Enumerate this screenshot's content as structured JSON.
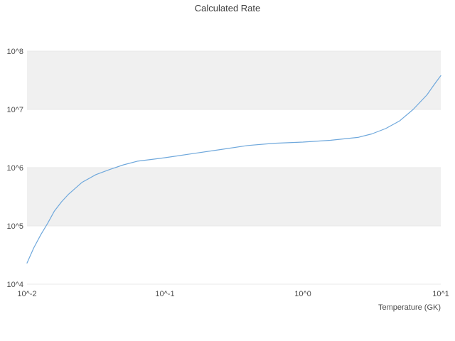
{
  "chart_data": {
    "type": "line",
    "title": "Calculated Rate",
    "xlabel": "Temperature (GK)",
    "ylabel": "",
    "x_scale": "log",
    "y_scale": "log",
    "xlim": [
      0.01,
      10
    ],
    "ylim": [
      10000.0,
      100000000.0
    ],
    "grid": "horizontal-bands",
    "legend": "none",
    "xticks": {
      "values": [
        0.01,
        0.1,
        1,
        10
      ],
      "labels": [
        "10^-2",
        "10^-1",
        "10^0",
        "10^1"
      ]
    },
    "yticks": {
      "values": [
        10000.0,
        100000.0,
        1000000.0,
        10000000.0,
        100000000.0
      ],
      "labels": [
        "10^4",
        "10^5",
        "10^6",
        "10^7",
        "10^8"
      ]
    },
    "band_color": "#f0f0f0",
    "background_color": "#ffffff",
    "series": [
      {
        "name": "calculated-rate",
        "color": "#6fa8dc",
        "x": [
          0.01,
          0.0112,
          0.0126,
          0.0141,
          0.0158,
          0.0178,
          0.02,
          0.0251,
          0.0316,
          0.0398,
          0.0501,
          0.0631,
          0.0794,
          0.1,
          0.158,
          0.251,
          0.398,
          0.631,
          1.0,
          1.58,
          2.51,
          3.16,
          3.98,
          5.01,
          6.31,
          7.94,
          8.91,
          10.0
        ],
        "y": [
          23000.0,
          42000.0,
          71000.0,
          110000.0,
          180000.0,
          260000.0,
          350000.0,
          560000.0,
          760000.0,
          930000.0,
          1120000.0,
          1290000.0,
          1380000.0,
          1480000.0,
          1740000.0,
          2040000.0,
          2400000.0,
          2630000.0,
          2750000.0,
          2950000.0,
          3310000.0,
          3800000.0,
          4680000.0,
          6310000.0,
          10000000.0,
          17800000.0,
          26300000.0,
          38000000.0
        ]
      }
    ]
  }
}
